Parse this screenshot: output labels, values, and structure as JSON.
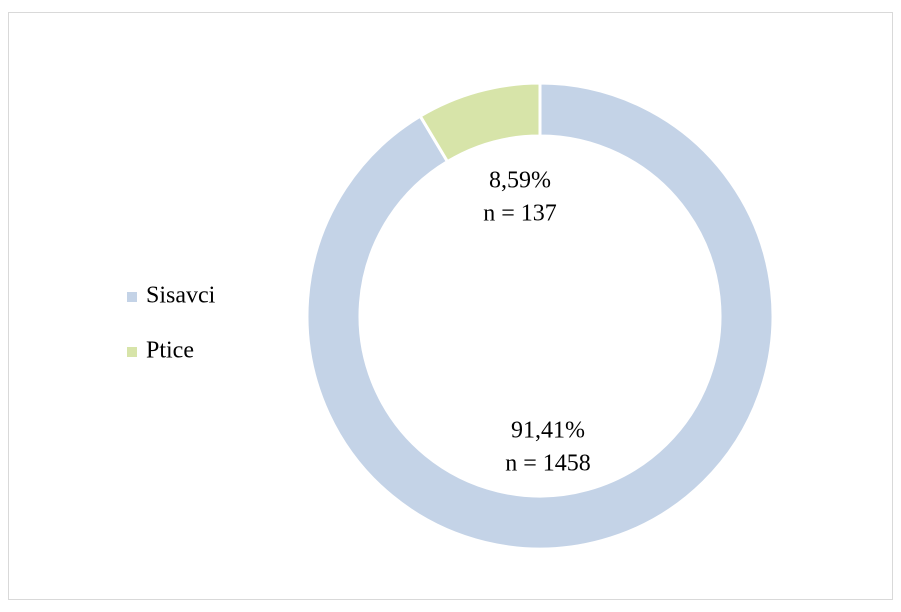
{
  "chart_data": {
    "type": "donut",
    "series": [
      {
        "name": "Sisavci",
        "color": "#c4d3e7",
        "values": [
          91.41
        ],
        "value_labels": [
          "91,41%"
        ],
        "counts": [
          1458
        ],
        "count_labels": [
          "n = 1458"
        ]
      },
      {
        "name": "Ptice",
        "color": "#d7e4a9",
        "values": [
          8.59
        ],
        "value_labels": [
          "8,59%"
        ],
        "counts": [
          137
        ],
        "count_labels": [
          "n = 137"
        ]
      }
    ],
    "legend": "left"
  }
}
